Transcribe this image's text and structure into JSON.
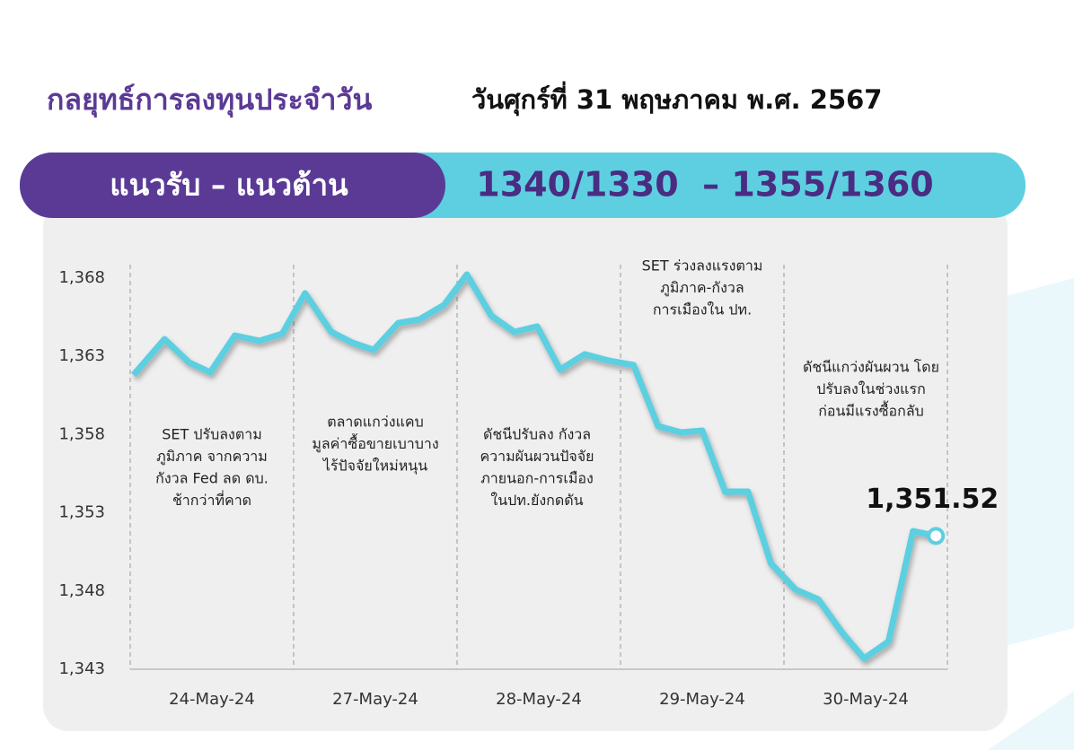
{
  "header": {
    "title": "กลยุทธ์การลงทุนประจำวัน",
    "date": "วันศุกร์ที่ 31 พฤษภาคม พ.ศ. 2567",
    "banner_label": "แนวรับ – แนวต้าน",
    "banner_levels": "1340/1330  – 1355/1360"
  },
  "chart_data": {
    "type": "line",
    "categories": [
      "24-May-24",
      "27-May-24",
      "28-May-24",
      "29-May-24",
      "30-May-24"
    ],
    "x": [
      0.02,
      0.21,
      0.36,
      0.49,
      0.64,
      0.79,
      0.93,
      1.07,
      1.23,
      1.36,
      1.49,
      1.64,
      1.77,
      1.92,
      2.06,
      2.21,
      2.35,
      2.49,
      2.63,
      2.78,
      2.93,
      3.08,
      3.23,
      3.37,
      3.5,
      3.64,
      3.78,
      3.92,
      4.07,
      4.21,
      4.36,
      4.49,
      4.64,
      4.79,
      4.93
    ],
    "values": [
      1361.81,
      1364.1,
      1362.61,
      1361.98,
      1364.33,
      1363.99,
      1364.44,
      1367.03,
      1364.56,
      1363.87,
      1363.41,
      1365.13,
      1365.36,
      1366.28,
      1368.23,
      1365.59,
      1364.56,
      1364.91,
      1362.15,
      1363.13,
      1362.72,
      1362.44,
      1358.54,
      1358.14,
      1358.25,
      1354.35,
      1354.35,
      1349.77,
      1348.1,
      1347.47,
      1345.29,
      1343.69,
      1344.78,
      1351.83,
      1351.52
    ],
    "value_labels": [
      null,
      null,
      null,
      null,
      null,
      null,
      null,
      null,
      null,
      null,
      null,
      null,
      null,
      null,
      null,
      null,
      null,
      null,
      null,
      null,
      null,
      null,
      null,
      null,
      null,
      null,
      null,
      null,
      null,
      null,
      null,
      null,
      null,
      null,
      "1,351.52"
    ],
    "color": "#5ccfe0",
    "xlim": [
      0,
      5
    ],
    "ylim": [
      1343,
      1368
    ],
    "yticks": [
      {
        "value": 1343,
        "label": "1,343"
      },
      {
        "value": 1348,
        "label": "1,348"
      },
      {
        "value": 1353,
        "label": "1,353"
      },
      {
        "value": 1358,
        "label": "1,358"
      },
      {
        "value": 1363,
        "label": "1,363"
      },
      {
        "value": 1368,
        "label": "1,368"
      }
    ],
    "annotations": [
      [
        "SET ปรับลงตาม",
        "ภูมิภาค จากความ",
        "กังวล Fed ลด ดบ.",
        "ช้ากว่าที่คาด"
      ],
      [
        "ตลาดแกว่งแคบ",
        "มูลค่าซื้อขายเบาบาง",
        "ไร้ปัจจัยใหม่หนุน"
      ],
      [
        "ดัชนีปรับลง กังวล",
        "ความผันผวนปัจจัย",
        "ภายนอก-การเมือง",
        "ในปท.ยังกดดัน"
      ],
      [
        "SET ร่วงลงแรงตาม",
        "ภูมิภาค-กังวล",
        "การเมืองใน ปท."
      ],
      [
        "ดัชนีแกว่งผันผวน โดย",
        "ปรับลงในช่วงแรก",
        "ก่อนมีแรงซื้อกลับ"
      ]
    ]
  }
}
